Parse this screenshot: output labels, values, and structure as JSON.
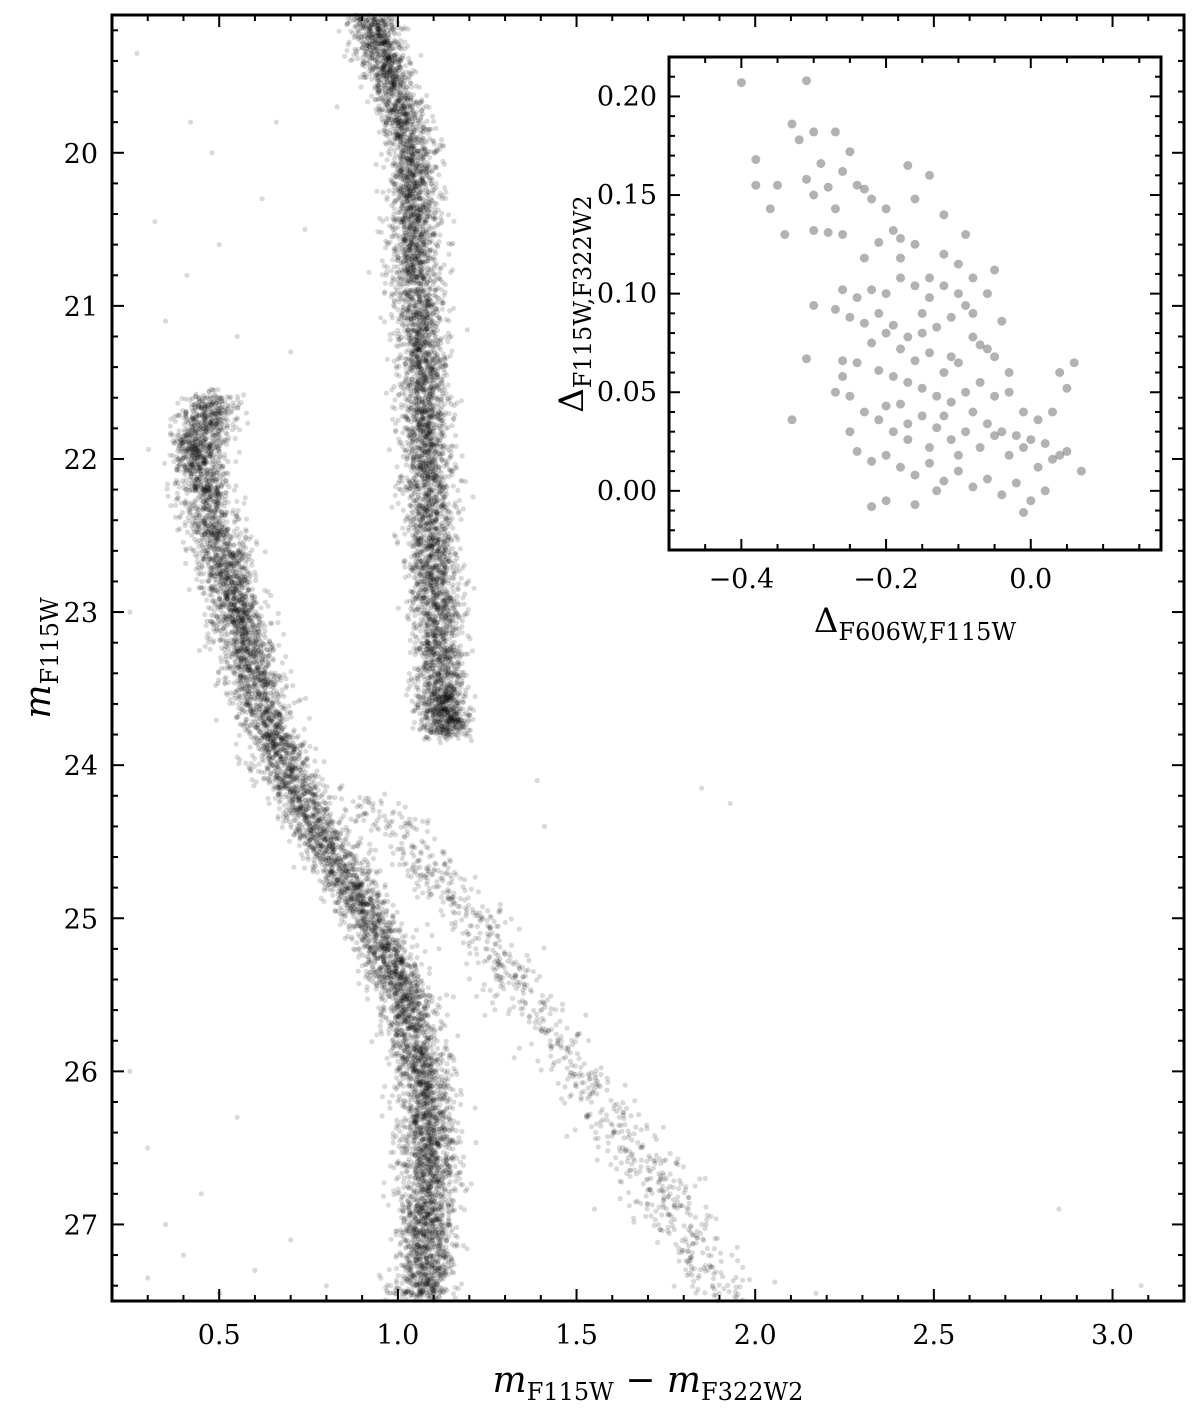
{
  "chart_data": [
    {
      "id": "main",
      "type": "scatter",
      "xlabel": "m_F115W − m_F322W2",
      "xlabel_parts": {
        "m1": "m",
        "sub1": "F115W",
        "op": " − ",
        "m2": "m",
        "sub2": "F322W2"
      },
      "ylabel": "m_F115W",
      "ylabel_parts": {
        "m": "m",
        "sub": "F115W"
      },
      "xlim": [
        0.2,
        3.2
      ],
      "ylim": [
        27.5,
        19.1
      ],
      "y_inverted": true,
      "x_ticks": [
        0.5,
        1.0,
        1.5,
        2.0,
        2.5,
        3.0
      ],
      "x_tick_labels": [
        "0.5",
        "1.0",
        "1.5",
        "2.0",
        "2.5",
        "3.0"
      ],
      "y_ticks": [
        20,
        21,
        22,
        23,
        24,
        25,
        26,
        27
      ],
      "y_tick_labels": [
        "20",
        "21",
        "22",
        "23",
        "24",
        "25",
        "26",
        "27"
      ],
      "grid": false,
      "marker_color": "#000000",
      "marker_alpha": 0.15,
      "point_count_approx": 14000,
      "sequences": [
        {
          "name": "",
          "description_points": [
            [
              0.92,
              19.1
            ],
            [
              0.98,
              19.5
            ],
            [
              1.04,
              20.0
            ],
            [
              1.05,
              20.5
            ],
            [
              1.06,
              21.0
            ],
            [
              1.07,
              21.5
            ],
            [
              1.08,
              22.0
            ],
            [
              1.09,
              22.5
            ],
            [
              1.11,
              23.0
            ],
            [
              1.12,
              23.5
            ],
            [
              1.14,
              23.8
            ]
          ],
          "spread": 0.035,
          "density": 1.0
        },
        {
          "name": "",
          "description_points": [
            [
              0.48,
              21.6
            ],
            [
              0.44,
              22.0
            ],
            [
              0.49,
              22.5
            ],
            [
              0.55,
              23.0
            ],
            [
              0.6,
              23.5
            ],
            [
              0.68,
              24.0
            ],
            [
              0.79,
              24.5
            ],
            [
              0.92,
              25.0
            ],
            [
              1.02,
              25.5
            ],
            [
              1.07,
              26.0
            ],
            [
              1.09,
              26.5
            ],
            [
              1.08,
              27.0
            ],
            [
              1.07,
              27.5
            ]
          ],
          "spread": 0.04,
          "density": 1.3
        },
        {
          "name": "",
          "description_points": [
            [
              0.9,
              24.2
            ],
            [
              1.05,
              24.6
            ],
            [
              1.2,
              25.0
            ],
            [
              1.35,
              25.5
            ],
            [
              1.5,
              26.0
            ],
            [
              1.65,
              26.5
            ],
            [
              1.8,
              27.0
            ],
            [
              1.9,
              27.5
            ]
          ],
          "spread": 0.05,
          "density": 0.15
        }
      ],
      "scattered_points": [
        [
          0.27,
          19.35
        ],
        [
          0.42,
          19.8
        ],
        [
          0.32,
          20.45
        ],
        [
          0.48,
          20.0
        ],
        [
          0.41,
          20.8
        ],
        [
          0.55,
          21.2
        ],
        [
          0.7,
          21.3
        ],
        [
          0.5,
          20.6
        ],
        [
          0.35,
          21.1
        ],
        [
          0.62,
          20.3
        ],
        [
          0.74,
          20.5
        ],
        [
          0.83,
          19.7
        ],
        [
          0.66,
          19.8
        ],
        [
          1.39,
          24.1
        ],
        [
          1.41,
          24.4
        ],
        [
          1.85,
          24.15
        ],
        [
          1.93,
          24.25
        ],
        [
          1.5,
          26.1
        ],
        [
          1.62,
          26.3
        ],
        [
          1.72,
          26.6
        ],
        [
          1.86,
          26.7
        ],
        [
          1.95,
          27.15
        ],
        [
          2.17,
          27.45
        ],
        [
          2.85,
          26.9
        ],
        [
          3.08,
          27.4
        ],
        [
          1.84,
          27.35
        ],
        [
          1.55,
          26.9
        ],
        [
          0.25,
          26.0
        ],
        [
          0.3,
          26.5
        ],
        [
          0.35,
          27.0
        ],
        [
          0.45,
          26.8
        ],
        [
          0.4,
          27.2
        ],
        [
          0.6,
          27.3
        ],
        [
          0.55,
          26.3
        ],
        [
          0.7,
          27.1
        ],
        [
          0.8,
          27.4
        ],
        [
          0.3,
          27.35
        ],
        [
          0.5,
          27.45
        ],
        [
          0.25,
          23.0
        ]
      ]
    },
    {
      "id": "inset",
      "type": "scatter",
      "xlabel": "Δ_F606W,F115W",
      "xlabel_parts": {
        "sym": "Δ",
        "sub": "F606W,F115W"
      },
      "ylabel": "Δ_F115W,F322W2",
      "ylabel_parts": {
        "sym": "Δ",
        "sub": "F115W,F322W2"
      },
      "xlim": [
        -0.5,
        0.18
      ],
      "ylim": [
        -0.03,
        0.22
      ],
      "x_ticks": [
        -0.4,
        -0.2,
        0.0
      ],
      "x_tick_labels": [
        "−0.4",
        "−0.2",
        "0.0"
      ],
      "y_ticks": [
        0.0,
        0.05,
        0.1,
        0.15,
        0.2
      ],
      "y_tick_labels": [
        "0.00",
        "0.05",
        "0.10",
        "0.15",
        "0.20"
      ],
      "grid": false,
      "legend": "none",
      "marker_color": "#000000",
      "marker_alpha": 0.3,
      "points": [
        [
          -0.4,
          0.207
        ],
        [
          -0.31,
          0.208
        ],
        [
          -0.38,
          0.168
        ],
        [
          -0.38,
          0.155
        ],
        [
          -0.35,
          0.155
        ],
        [
          -0.36,
          0.143
        ],
        [
          -0.32,
          0.178
        ],
        [
          -0.3,
          0.182
        ],
        [
          -0.27,
          0.182
        ],
        [
          -0.29,
          0.166
        ],
        [
          -0.33,
          0.186
        ],
        [
          -0.31,
          0.158
        ],
        [
          -0.28,
          0.154
        ],
        [
          -0.26,
          0.162
        ],
        [
          -0.25,
          0.172
        ],
        [
          -0.24,
          0.155
        ],
        [
          -0.23,
          0.153
        ],
        [
          -0.22,
          0.148
        ],
        [
          -0.27,
          0.143
        ],
        [
          -0.3,
          0.132
        ],
        [
          -0.28,
          0.131
        ],
        [
          -0.26,
          0.13
        ],
        [
          -0.2,
          0.143
        ],
        [
          -0.19,
          0.132
        ],
        [
          -0.18,
          0.128
        ],
        [
          -0.17,
          0.165
        ],
        [
          -0.14,
          0.16
        ],
        [
          -0.16,
          0.148
        ],
        [
          -0.12,
          0.14
        ],
        [
          -0.21,
          0.126
        ],
        [
          -0.23,
          0.118
        ],
        [
          -0.34,
          0.13
        ],
        [
          -0.3,
          0.15
        ],
        [
          -0.26,
          0.102
        ],
        [
          -0.24,
          0.098
        ],
        [
          -0.22,
          0.102
        ],
        [
          -0.2,
          0.1
        ],
        [
          -0.18,
          0.108
        ],
        [
          -0.16,
          0.104
        ],
        [
          -0.14,
          0.098
        ],
        [
          -0.12,
          0.104
        ],
        [
          -0.1,
          0.115
        ],
        [
          -0.08,
          0.108
        ],
        [
          -0.05,
          0.112
        ],
        [
          -0.09,
          0.094
        ],
        [
          -0.11,
          0.088
        ],
        [
          -0.13,
          0.083
        ],
        [
          -0.15,
          0.08
        ],
        [
          -0.17,
          0.078
        ],
        [
          -0.19,
          0.084
        ],
        [
          -0.21,
          0.09
        ],
        [
          -0.23,
          0.085
        ],
        [
          -0.25,
          0.088
        ],
        [
          -0.27,
          0.092
        ],
        [
          -0.22,
          0.075
        ],
        [
          -0.2,
          0.08
        ],
        [
          -0.18,
          0.072
        ],
        [
          -0.16,
          0.066
        ],
        [
          -0.14,
          0.07
        ],
        [
          -0.12,
          0.06
        ],
        [
          -0.1,
          0.065
        ],
        [
          -0.08,
          0.078
        ],
        [
          -0.06,
          0.072
        ],
        [
          -0.04,
          0.086
        ],
        [
          -0.26,
          0.066
        ],
        [
          -0.24,
          0.065
        ],
        [
          -0.21,
          0.061
        ],
        [
          -0.19,
          0.058
        ],
        [
          -0.17,
          0.055
        ],
        [
          -0.15,
          0.052
        ],
        [
          -0.13,
          0.048
        ],
        [
          -0.11,
          0.045
        ],
        [
          -0.09,
          0.05
        ],
        [
          -0.07,
          0.055
        ],
        [
          -0.05,
          0.048
        ],
        [
          -0.03,
          0.05
        ],
        [
          -0.01,
          0.04
        ],
        [
          0.01,
          0.036
        ],
        [
          0.03,
          0.04
        ],
        [
          0.05,
          0.052
        ],
        [
          0.06,
          0.065
        ],
        [
          0.04,
          0.06
        ],
        [
          -0.31,
          0.067
        ],
        [
          -0.3,
          0.094
        ],
        [
          -0.33,
          0.036
        ],
        [
          -0.25,
          0.048
        ],
        [
          -0.23,
          0.04
        ],
        [
          -0.21,
          0.036
        ],
        [
          -0.19,
          0.03
        ],
        [
          -0.17,
          0.034
        ],
        [
          -0.15,
          0.038
        ],
        [
          -0.13,
          0.032
        ],
        [
          -0.11,
          0.026
        ],
        [
          -0.09,
          0.03
        ],
        [
          -0.07,
          0.022
        ],
        [
          -0.05,
          0.028
        ],
        [
          -0.03,
          0.018
        ],
        [
          -0.01,
          0.022
        ],
        [
          0.01,
          0.012
        ],
        [
          0.03,
          0.016
        ],
        [
          0.05,
          0.02
        ],
        [
          0.07,
          0.01
        ],
        [
          -0.24,
          0.02
        ],
        [
          -0.22,
          0.015
        ],
        [
          -0.2,
          0.018
        ],
        [
          -0.18,
          0.012
        ],
        [
          -0.16,
          0.008
        ],
        [
          -0.14,
          0.014
        ],
        [
          -0.12,
          0.005
        ],
        [
          -0.1,
          0.01
        ],
        [
          -0.08,
          0.002
        ],
        [
          -0.06,
          0.006
        ],
        [
          -0.04,
          -0.002
        ],
        [
          -0.02,
          0.004
        ],
        [
          0.0,
          -0.005
        ],
        [
          -0.2,
          -0.005
        ],
        [
          -0.16,
          -0.007
        ],
        [
          -0.13,
          0.0
        ],
        [
          -0.22,
          -0.008
        ],
        [
          -0.01,
          -0.011
        ],
        [
          0.02,
          0.0
        ],
        [
          -0.25,
          0.03
        ],
        [
          -0.27,
          0.05
        ],
        [
          -0.26,
          0.058
        ],
        [
          -0.18,
          0.044
        ],
        [
          -0.12,
          0.038
        ],
        [
          -0.08,
          0.04
        ],
        [
          -0.06,
          0.034
        ],
        [
          -0.04,
          0.03
        ],
        [
          -0.02,
          0.028
        ],
        [
          0.0,
          0.026
        ],
        [
          0.02,
          0.024
        ],
        [
          0.04,
          0.018
        ],
        [
          -0.1,
          0.018
        ],
        [
          -0.14,
          0.022
        ],
        [
          -0.17,
          0.026
        ],
        [
          -0.2,
          0.043
        ],
        [
          -0.11,
          0.068
        ],
        [
          -0.08,
          0.09
        ],
        [
          -0.06,
          0.1
        ],
        [
          -0.03,
          0.06
        ],
        [
          -0.15,
          0.09
        ],
        [
          -0.12,
          0.12
        ],
        [
          -0.09,
          0.13
        ],
        [
          -0.14,
          0.108
        ],
        [
          -0.18,
          0.118
        ],
        [
          -0.16,
          0.125
        ],
        [
          -0.1,
          0.1
        ],
        [
          -0.07,
          0.074
        ],
        [
          -0.05,
          0.068
        ]
      ]
    }
  ]
}
